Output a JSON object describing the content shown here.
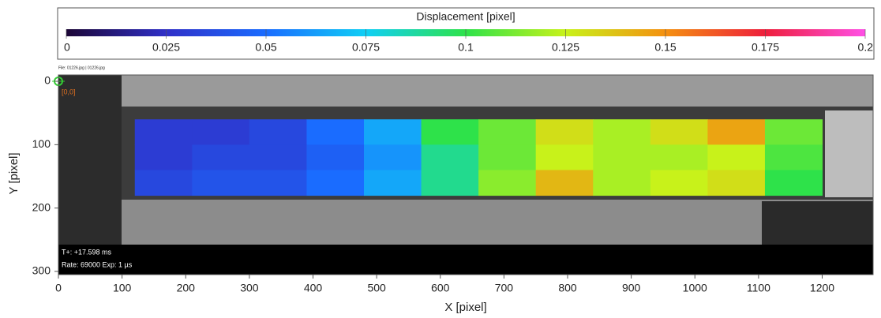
{
  "chart_data": {
    "type": "heatmap",
    "colorbar_title": "Displacement [pixel]",
    "clim": [
      0,
      0.2
    ],
    "cticks": [
      0,
      0.025,
      0.05,
      0.075,
      0.1,
      0.125,
      0.15,
      0.175,
      0.2
    ],
    "colormap": [
      "#1c0636",
      "#3030c8",
      "#1a6cff",
      "#10cff5",
      "#2ee24a",
      "#c8f21a",
      "#f49010",
      "#ee1e3c",
      "#ff50e6"
    ],
    "xlabel": "X [pixel]",
    "ylabel": "Y [pixel]",
    "xlim": [
      0,
      1280
    ],
    "xticks": [
      0,
      100,
      200,
      300,
      400,
      500,
      600,
      700,
      800,
      900,
      1000,
      1100,
      1200
    ],
    "ylim": [
      -10,
      305
    ],
    "yticks": [
      0,
      100,
      200,
      300
    ],
    "y_inverted": true,
    "field": {
      "x_edges": [
        120,
        210,
        300,
        390,
        480,
        570,
        660,
        750,
        840,
        930,
        1020,
        1110,
        1200
      ],
      "y_edges": [
        60,
        100,
        140,
        180
      ],
      "values": [
        [
          0.03,
          0.03,
          0.035,
          0.05,
          0.065,
          0.1,
          0.11,
          0.13,
          0.12,
          0.13,
          0.145,
          0.11
        ],
        [
          0.03,
          0.035,
          0.035,
          0.045,
          0.06,
          0.09,
          0.11,
          0.125,
          0.12,
          0.12,
          0.125,
          0.105
        ],
        [
          0.035,
          0.04,
          0.04,
          0.05,
          0.065,
          0.09,
          0.115,
          0.14,
          0.12,
          0.125,
          0.13,
          0.1
        ]
      ]
    },
    "annotations": {
      "file": "File: 01226.jpg | 01226.jpg",
      "origin": "[0,0]",
      "time": "T+: +17.598 ms",
      "rate": "Rate: 69000  Exp:  1 µs"
    }
  }
}
